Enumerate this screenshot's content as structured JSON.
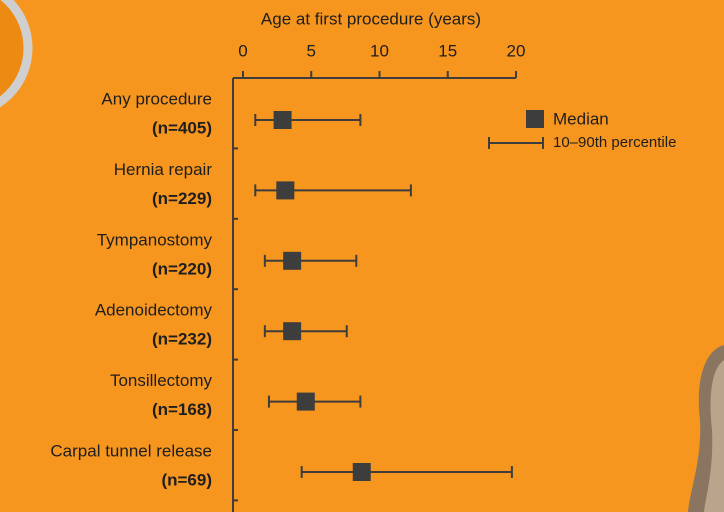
{
  "chart_data": {
    "type": "dot-range",
    "title": "Age at first procedure (years)",
    "categories": [
      "Any procedure",
      "Hernia repair",
      "Tympanostomy",
      "Adenoidectomy",
      "Tonsillectomy",
      "Carpal tunnel release"
    ],
    "n_labels": [
      "(n=405)",
      "(n=229)",
      "(n=220)",
      "(n=232)",
      "(n=168)",
      "(n=69)"
    ],
    "series": [
      {
        "name": "Median",
        "color": "#3d3d3d",
        "values": [
          2.9,
          3.1,
          3.6,
          3.6,
          4.6,
          8.7
        ]
      },
      {
        "name": "10–90th percentile",
        "color": "#3d3d3d",
        "low": [
          0.9,
          0.9,
          1.6,
          1.6,
          1.9,
          4.3
        ],
        "high": [
          8.6,
          12.3,
          8.3,
          7.6,
          8.6,
          19.7
        ]
      }
    ],
    "xlim": [
      0,
      20
    ],
    "xticks": [
      0,
      5,
      10,
      15,
      20
    ]
  }
}
